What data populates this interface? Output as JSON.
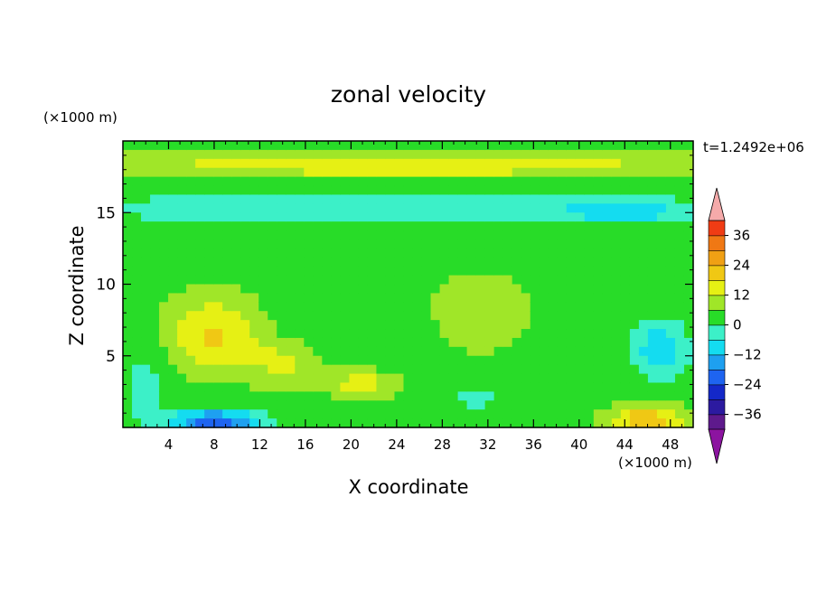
{
  "chart_data": {
    "type": "heatmap",
    "title": "zonal velocity",
    "xlabel": "X coordinate",
    "ylabel": "Z coordinate",
    "x_unit": "(×1000 m)",
    "y_unit": "(×1000 m)",
    "time_label": "t=1.2492e+06",
    "xlim": [
      0,
      50
    ],
    "ylim": [
      0,
      20
    ],
    "x_ticks": [
      4,
      8,
      12,
      16,
      20,
      24,
      28,
      32,
      36,
      40,
      44,
      48
    ],
    "y_ticks": [
      5,
      10,
      15
    ],
    "colorbar": {
      "levels": [
        -42,
        -36,
        -30,
        -24,
        -18,
        -12,
        -6,
        0,
        6,
        12,
        18,
        24,
        30,
        36,
        42
      ],
      "tick_labels": [
        "36",
        "24",
        "12",
        "0",
        "−12",
        "−24",
        "−36"
      ],
      "tick_values": [
        36,
        24,
        12,
        0,
        -12,
        -24,
        -36
      ],
      "colors": [
        "#5e1a8c",
        "#2c1aa0",
        "#1428c8",
        "#1e64f0",
        "#1ea0f0",
        "#14dcf0",
        "#3cf0c8",
        "#28dc28",
        "#a0e628",
        "#e6f014",
        "#f0c814",
        "#f0a014",
        "#f07814",
        "#f03c14"
      ],
      "extend_low_color": "#8c14a0",
      "extend_high_color": "#f5aaaa"
    },
    "features": [
      {
        "x": 25,
        "z": 18.3,
        "sx": 30,
        "sz": 0.9,
        "v": 12
      },
      {
        "x": 25,
        "z": 15.3,
        "sx": 30,
        "sz": 1.3,
        "v": -9
      },
      {
        "x": 44,
        "z": 15.0,
        "sx": 5,
        "sz": 0.5,
        "v": -12
      },
      {
        "x": 8,
        "z": 6.5,
        "sx": 4,
        "sz": 2.5,
        "v": 15
      },
      {
        "x": 14,
        "z": 4.5,
        "sx": 3,
        "sz": 1.5,
        "v": 9
      },
      {
        "x": 21,
        "z": 3,
        "sx": 3,
        "sz": 0.9,
        "v": 11
      },
      {
        "x": 8,
        "z": 0.4,
        "sx": 4,
        "sz": 0.8,
        "v": -26
      },
      {
        "x": 46,
        "z": 0.5,
        "sx": 3,
        "sz": 1.0,
        "v": 20
      },
      {
        "x": 47,
        "z": 5.5,
        "sx": 2.5,
        "sz": 2.0,
        "v": -14
      },
      {
        "x": 31,
        "z": 8,
        "sx": 5,
        "sz": 3,
        "v": 5
      },
      {
        "x": 2,
        "z": 3,
        "sx": 2,
        "sz": 3,
        "v": -6
      },
      {
        "x": 20,
        "z": 7.5,
        "sx": 6,
        "sz": 2,
        "v": -4
      },
      {
        "x": 31,
        "z": 2,
        "sx": 3,
        "sz": 1.5,
        "v": -5
      }
    ]
  }
}
